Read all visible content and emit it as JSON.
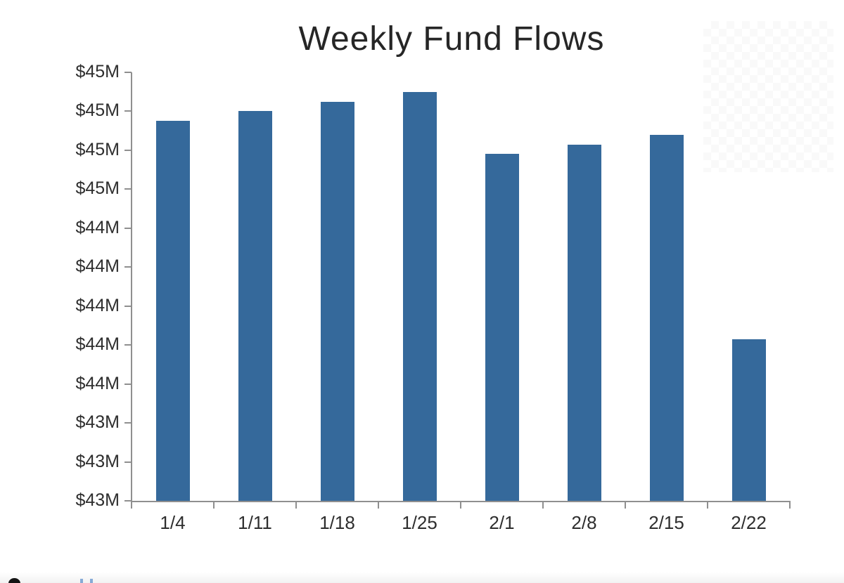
{
  "chart_data": {
    "type": "bar",
    "title": "Weekly Fund Flows",
    "categories": [
      "1/4",
      "1/11",
      "1/18",
      "1/25",
      "2/1",
      "2/8",
      "2/15",
      "2/22"
    ],
    "values": [
      44.95,
      45.0,
      45.05,
      45.1,
      44.78,
      44.83,
      44.88,
      43.83
    ],
    "value_unit": "$M",
    "bar_color": "#35699b",
    "xlabel": "",
    "ylabel": "",
    "ylim": [
      43.0,
      45.2
    ],
    "y_tick_step": 0.2,
    "y_tick_labels": [
      "$45M",
      "$45M",
      "$45M",
      "$45M",
      "$44M",
      "$44M",
      "$44M",
      "$44M",
      "$44M",
      "$43M",
      "$43M",
      "$43M"
    ],
    "grid": false,
    "legend_position": "none"
  },
  "page": {
    "background_color": "#ffffff",
    "axis_color": "#8f8f8f",
    "text_color": "#2e2e2e",
    "title_color": "#262626"
  }
}
